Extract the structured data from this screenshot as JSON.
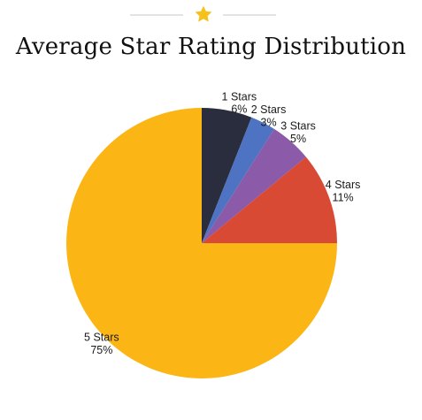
{
  "header": {
    "ornament_icon": "star-icon"
  },
  "colors": {
    "star": "#f5c11a",
    "rule": "#e3e3e3"
  },
  "chart_data": {
    "type": "pie",
    "title": "Average Star Rating Distribution",
    "slices": [
      {
        "name": "1 Stars",
        "value": 6,
        "label": "6%",
        "color": "#2a2d3e"
      },
      {
        "name": "2 Stars",
        "value": 3,
        "label": "3%",
        "color": "#4d73c2"
      },
      {
        "name": "3 Stars",
        "value": 5,
        "label": "5%",
        "color": "#8b5aa8"
      },
      {
        "name": "4 Stars",
        "value": 11,
        "label": "11%",
        "color": "#d94a35"
      },
      {
        "name": "5 Stars",
        "value": 75,
        "label": "75%",
        "color": "#fbb616"
      }
    ]
  }
}
